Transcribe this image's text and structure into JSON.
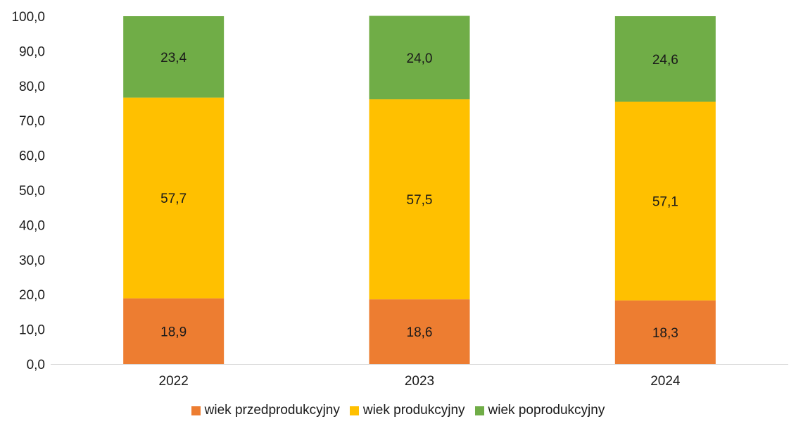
{
  "chart_data": {
    "type": "bar",
    "stacked": true,
    "title": "",
    "xlabel": "",
    "ylabel": "",
    "categories": [
      "2022",
      "2023",
      "2024"
    ],
    "ylim": [
      0,
      100
    ],
    "y_ticks": [
      "0,0",
      "10,0",
      "20,0",
      "30,0",
      "40,0",
      "50,0",
      "60,0",
      "70,0",
      "80,0",
      "90,0",
      "100,0"
    ],
    "series": [
      {
        "name": "wiek przedprodukcyjny",
        "color": "#ED7D31",
        "values": [
          18.9,
          18.6,
          18.3
        ],
        "labels": [
          "18,9",
          "18,6",
          "18,3"
        ]
      },
      {
        "name": "wiek produkcyjny",
        "color": "#FFC000",
        "values": [
          57.7,
          57.5,
          57.1
        ],
        "labels": [
          "57,7",
          "57,5",
          "57,1"
        ]
      },
      {
        "name": "wiek poprodukcyjny",
        "color": "#70AD47",
        "values": [
          23.4,
          24.0,
          24.6
        ],
        "labels": [
          "23,4",
          "24,0",
          "24,6"
        ]
      }
    ],
    "grid": false,
    "legend_position": "bottom"
  }
}
